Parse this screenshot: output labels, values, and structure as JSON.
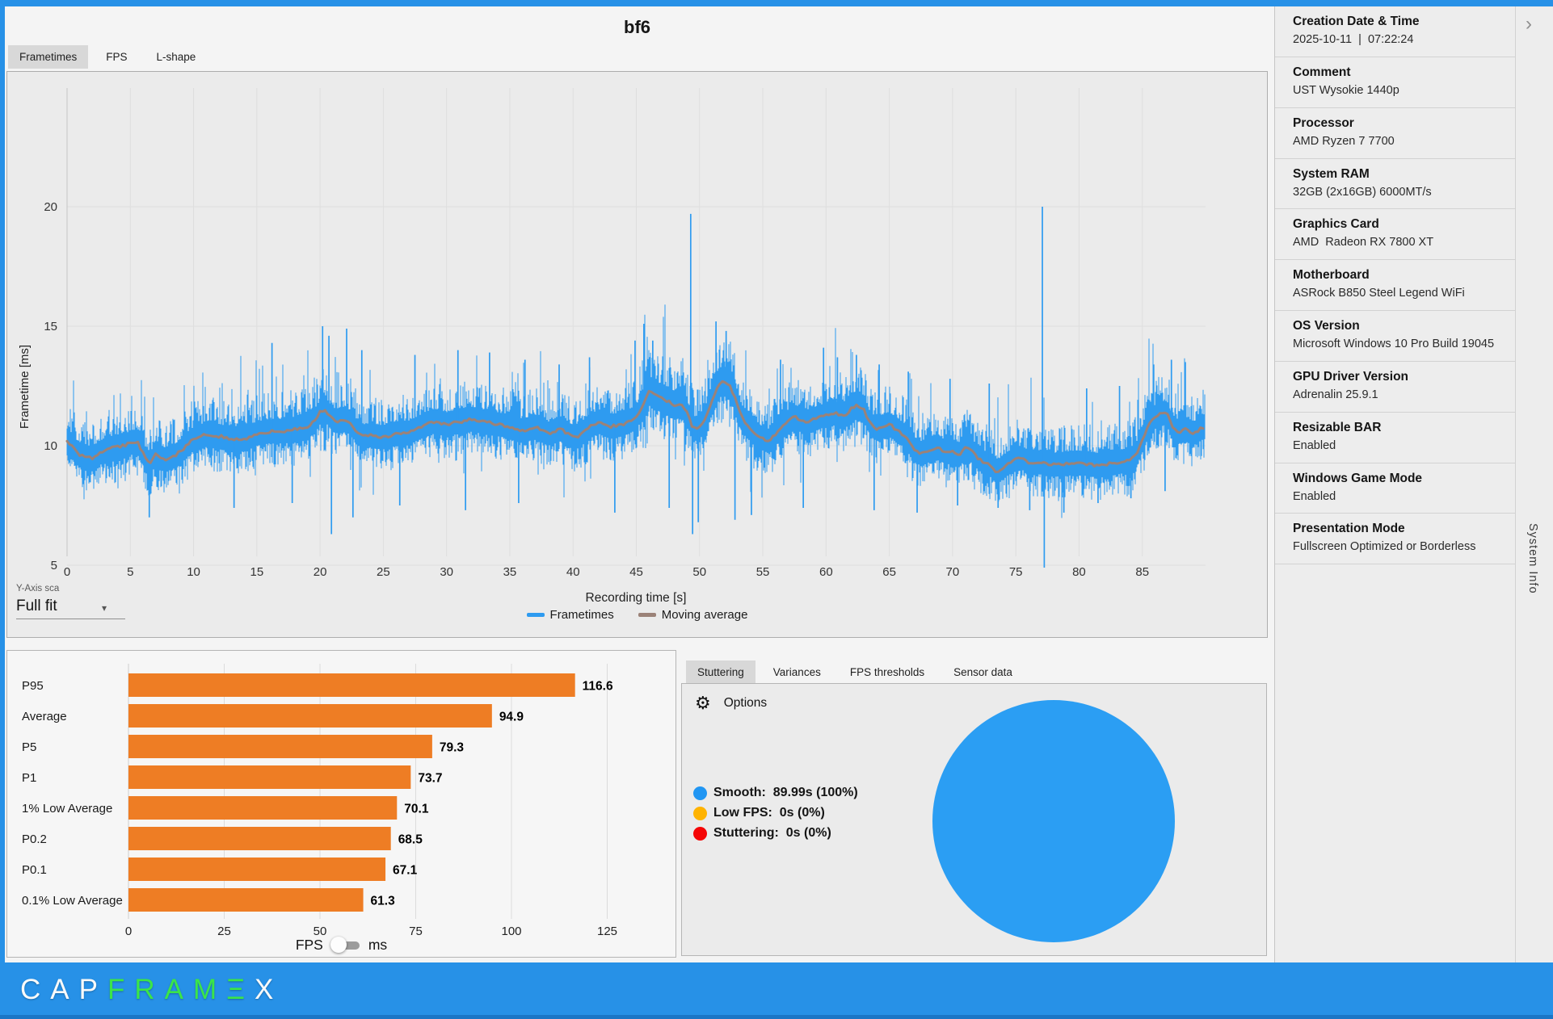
{
  "colors": {
    "accent_blue": "#2791E7",
    "frametime_blue": "#2E9BF0",
    "moving_avg_brown": "#9B8278",
    "bar_orange": "#EE7D24",
    "pie_blue": "#2B9EF3"
  },
  "header": {
    "title": "bf6",
    "tabs": [
      "Frametimes",
      "FPS",
      "L-shape"
    ],
    "selected_tab": "Frametimes"
  },
  "frametime_panel": {
    "y_axis_scale_label": "Y-Axis sca",
    "y_axis_scale_value": "Full fit",
    "legend": [
      {
        "label": "Frametimes",
        "color": "#2E9BF0"
      },
      {
        "label": "Moving average",
        "color": "#9B8278"
      }
    ]
  },
  "bottom_left": {
    "toggle": {
      "left_label": "FPS",
      "right_label": "ms",
      "state": "FPS"
    }
  },
  "stutter_panel": {
    "tabs": [
      "Stuttering",
      "Variances",
      "FPS thresholds",
      "Sensor data"
    ],
    "selected_tab": "Stuttering",
    "options_label": "Options",
    "legend": [
      {
        "label": "Smooth:",
        "value": "89.99s (100%)",
        "color": "#2196F3"
      },
      {
        "label": "Low FPS:",
        "value": "0s (0%)",
        "color": "#FFB300"
      },
      {
        "label": "Stuttering:",
        "value": "0s (0%)",
        "color": "#F50505"
      }
    ]
  },
  "sidebar": {
    "panel_label": "System Info",
    "chevron": "›",
    "items": [
      {
        "title": "Creation Date & Time",
        "value": "2025-10-11  |  07:22:24"
      },
      {
        "title": "Comment",
        "value": "UST Wysokie 1440p"
      },
      {
        "title": "Processor",
        "value": "AMD Ryzen 7 7700"
      },
      {
        "title": "System RAM",
        "value": "32GB (2x16GB) 6000MT/s"
      },
      {
        "title": "Graphics Card",
        "value": "AMD  Radeon RX 7800 XT"
      },
      {
        "title": "Motherboard",
        "value": "ASRock B850 Steel Legend WiFi"
      },
      {
        "title": "OS Version",
        "value": "Microsoft Windows 10 Pro Build 19045"
      },
      {
        "title": "GPU Driver Version",
        "value": "Adrenalin 25.9.1"
      },
      {
        "title": "Resizable BAR",
        "value": "Enabled"
      },
      {
        "title": "Windows Game Mode",
        "value": "Enabled"
      },
      {
        "title": "Presentation Mode",
        "value": "Fullscreen Optimized or Borderless"
      }
    ]
  },
  "footer": {
    "letters": [
      {
        "ch": "C",
        "color": "#FAFAFA"
      },
      {
        "ch": "A",
        "color": "#FAFAFA"
      },
      {
        "ch": "P",
        "color": "#FAFAFA"
      },
      {
        "ch": "F",
        "color": "#3BE549"
      },
      {
        "ch": "R",
        "color": "#3BE549"
      },
      {
        "ch": "A",
        "color": "#3BE549"
      },
      {
        "ch": "M",
        "color": "#3BE549"
      },
      {
        "ch": "Ξ",
        "color": "#3BE549"
      },
      {
        "ch": "X",
        "color": "#FAFAFA"
      }
    ]
  },
  "chart_data": [
    {
      "type": "line",
      "title": "bf6",
      "xlabel": "Recording time [s]",
      "ylabel": "Frametime [ms]",
      "xlim": [
        0,
        90
      ],
      "end_time_s": 89.99,
      "xticks": [
        0,
        5,
        10,
        15,
        20,
        25,
        30,
        35,
        40,
        45,
        50,
        55,
        60,
        65,
        70,
        75,
        80,
        85
      ],
      "yticks": [
        5,
        10,
        15,
        20
      ],
      "grid": true,
      "legend_position": "bottom-center",
      "series": [
        {
          "name": "Frametimes",
          "color": "#2E9BF0",
          "style": "noisy-band",
          "band_halfwidth_ms": 1.3,
          "noise_seed": 1337,
          "spikes_up": [
            [
              16.2,
              14.3
            ],
            [
              20.2,
              15.0
            ],
            [
              20.7,
              14.6
            ],
            [
              22.1,
              14.9
            ],
            [
              23.3,
              14.0
            ],
            [
              27.5,
              13.8
            ],
            [
              30.9,
              14.0
            ],
            [
              33.4,
              13.9
            ],
            [
              36.2,
              13.6
            ],
            [
              38.9,
              13.4
            ],
            [
              41.3,
              13.7
            ],
            [
              44.9,
              14.4
            ],
            [
              45.6,
              15.1
            ],
            [
              46.3,
              14.4
            ],
            [
              49.3,
              19.7
            ],
            [
              51.3,
              15.2
            ],
            [
              52.1,
              14.8
            ],
            [
              56.4,
              13.6
            ],
            [
              59.8,
              14.1
            ],
            [
              60.9,
              13.7
            ],
            [
              62.4,
              13.8
            ],
            [
              64.2,
              13.4
            ],
            [
              66.5,
              13.1
            ],
            [
              69.8,
              12.8
            ],
            [
              72.9,
              12.6
            ],
            [
              77.1,
              20.0
            ],
            [
              80.6,
              12.4
            ],
            [
              83.2,
              12.5
            ],
            [
              85.9,
              13.4
            ],
            [
              87.3,
              13.6
            ],
            [
              88.4,
              13.5
            ]
          ],
          "spikes_down": [
            [
              6.5,
              7.0
            ],
            [
              13.2,
              7.4
            ],
            [
              17.8,
              7.6
            ],
            [
              20.9,
              6.3
            ],
            [
              22.6,
              7.0
            ],
            [
              26.3,
              7.5
            ],
            [
              31.5,
              7.3
            ],
            [
              35.7,
              7.6
            ],
            [
              43.3,
              7.2
            ],
            [
              47.6,
              7.4
            ],
            [
              49.45,
              6.3
            ],
            [
              49.9,
              6.8
            ],
            [
              52.8,
              6.9
            ],
            [
              54.1,
              7.1
            ],
            [
              58.2,
              7.4
            ],
            [
              63.8,
              7.3
            ],
            [
              67.2,
              7.2
            ],
            [
              70.4,
              7.5
            ],
            [
              73.6,
              7.4
            ],
            [
              76.1,
              7.3
            ],
            [
              77.25,
              4.9
            ],
            [
              78.8,
              7.2
            ],
            [
              81.5,
              7.6
            ],
            [
              84.1,
              7.8
            ],
            [
              86.8,
              8.1
            ]
          ]
        },
        {
          "name": "Moving average",
          "color": "#9B8278",
          "points": [
            [
              0,
              10.15
            ],
            [
              0.5,
              9.9
            ],
            [
              1,
              9.6
            ],
            [
              1.5,
              9.5
            ],
            [
              2,
              9.5
            ],
            [
              2.5,
              9.65
            ],
            [
              3,
              9.85
            ],
            [
              3.5,
              9.9
            ],
            [
              4,
              9.95
            ],
            [
              4.5,
              10.0
            ],
            [
              5,
              10.1
            ],
            [
              5.5,
              10.2
            ],
            [
              6,
              9.7
            ],
            [
              6.3,
              9.3
            ],
            [
              6.7,
              9.35
            ],
            [
              7,
              9.7
            ],
            [
              7.4,
              9.5
            ],
            [
              7.8,
              9.4
            ],
            [
              8.2,
              9.5
            ],
            [
              8.6,
              9.6
            ],
            [
              9,
              9.8
            ],
            [
              9.5,
              10.0
            ],
            [
              10,
              10.3
            ],
            [
              10.5,
              10.4
            ],
            [
              11,
              10.45
            ],
            [
              12,
              10.4
            ],
            [
              13,
              10.3
            ],
            [
              14,
              10.25
            ],
            [
              15,
              10.5
            ],
            [
              16,
              10.6
            ],
            [
              17,
              10.6
            ],
            [
              18,
              10.7
            ],
            [
              19,
              10.8
            ],
            [
              19.5,
              11.0
            ],
            [
              20,
              11.4
            ],
            [
              20.4,
              11.5
            ],
            [
              21,
              11.1
            ],
            [
              21.5,
              11.0
            ],
            [
              22,
              11.1
            ],
            [
              22.5,
              10.9
            ],
            [
              23,
              10.5
            ],
            [
              23.5,
              10.4
            ],
            [
              24,
              10.45
            ],
            [
              25,
              10.35
            ],
            [
              26,
              10.5
            ],
            [
              27,
              10.55
            ],
            [
              28,
              10.8
            ],
            [
              29,
              11.0
            ],
            [
              30,
              10.9
            ],
            [
              31,
              11.0
            ],
            [
              32,
              11.1
            ],
            [
              33,
              11.0
            ],
            [
              34,
              10.9
            ],
            [
              35,
              10.8
            ],
            [
              36,
              10.6
            ],
            [
              37,
              10.8
            ],
            [
              38,
              10.5
            ],
            [
              39,
              10.7
            ],
            [
              40,
              10.35
            ],
            [
              40.5,
              10.4
            ],
            [
              41,
              10.7
            ],
            [
              42,
              11.0
            ],
            [
              43,
              10.8
            ],
            [
              44,
              10.9
            ],
            [
              45,
              11.2
            ],
            [
              45.5,
              11.6
            ],
            [
              46,
              12.3
            ],
            [
              46.5,
              12.1
            ],
            [
              47,
              12.0
            ],
            [
              47.5,
              11.85
            ],
            [
              48,
              11.7
            ],
            [
              48.5,
              11.8
            ],
            [
              49,
              11.4
            ],
            [
              49.5,
              10.7
            ],
            [
              50,
              10.8
            ],
            [
              50.5,
              11.2
            ],
            [
              51,
              11.9
            ],
            [
              51.5,
              12.6
            ],
            [
              52,
              12.7
            ],
            [
              52.5,
              12.4
            ],
            [
              53,
              11.7
            ],
            [
              53.5,
              11.0
            ],
            [
              54,
              10.7
            ],
            [
              54.5,
              10.4
            ],
            [
              55,
              10.3
            ],
            [
              55.5,
              10.2
            ],
            [
              56,
              10.5
            ],
            [
              56.5,
              10.8
            ],
            [
              57,
              11.0
            ],
            [
              57.5,
              11.2
            ],
            [
              58,
              11.1
            ],
            [
              58.5,
              11.0
            ],
            [
              59,
              11.1
            ],
            [
              59.5,
              11.2
            ],
            [
              60,
              11.3
            ],
            [
              60.5,
              11.4
            ],
            [
              61,
              11.3
            ],
            [
              61.5,
              11.2
            ],
            [
              62,
              11.6
            ],
            [
              62.5,
              11.7
            ],
            [
              63,
              11.5
            ],
            [
              63.5,
              10.9
            ],
            [
              64,
              10.7
            ],
            [
              64.5,
              10.8
            ],
            [
              65,
              10.9
            ],
            [
              65.5,
              10.7
            ],
            [
              66,
              10.5
            ],
            [
              66.5,
              10.3
            ],
            [
              67,
              9.8
            ],
            [
              67.5,
              9.7
            ],
            [
              68,
              9.8
            ],
            [
              68.5,
              9.9
            ],
            [
              69,
              9.9
            ],
            [
              69.5,
              9.7
            ],
            [
              70,
              9.8
            ],
            [
              70.5,
              9.6
            ],
            [
              71,
              9.9
            ],
            [
              71.5,
              9.8
            ],
            [
              72,
              9.5
            ],
            [
              72.5,
              9.3
            ],
            [
              73,
              9.2
            ],
            [
              73.5,
              8.9
            ],
            [
              74,
              9.1
            ],
            [
              74.5,
              9.3
            ],
            [
              75,
              9.45
            ],
            [
              75.5,
              9.5
            ],
            [
              76,
              9.3
            ],
            [
              77,
              9.3
            ],
            [
              78,
              9.2
            ],
            [
              79,
              9.25
            ],
            [
              80,
              9.3
            ],
            [
              81,
              9.2
            ],
            [
              82,
              9.2
            ],
            [
              83,
              9.3
            ],
            [
              84,
              9.4
            ],
            [
              84.5,
              9.6
            ],
            [
              85,
              10.2
            ],
            [
              85.5,
              10.9
            ],
            [
              86,
              11.2
            ],
            [
              86.5,
              11.4
            ],
            [
              87,
              11.3
            ],
            [
              87.5,
              10.65
            ],
            [
              88,
              10.6
            ],
            [
              88.5,
              10.7
            ],
            [
              89,
              10.5
            ],
            [
              89.9,
              10.8
            ]
          ]
        }
      ]
    },
    {
      "type": "bar",
      "orientation": "horizontal",
      "unit": "FPS",
      "categories": [
        "P95",
        "Average",
        "P5",
        "P1",
        "1% Low Average",
        "P0.2",
        "P0.1",
        "0.1% Low Average"
      ],
      "values": [
        116.6,
        94.9,
        79.3,
        73.7,
        70.1,
        68.5,
        67.1,
        61.3
      ],
      "bar_color": "#EE7D24",
      "xticks": [
        0,
        25,
        50,
        75,
        100,
        125
      ],
      "xlim": [
        0,
        140
      ],
      "grid": true
    },
    {
      "type": "pie",
      "slices": [
        {
          "label": "Smooth",
          "seconds": 89.99,
          "percent": 100,
          "color": "#2B9EF3"
        },
        {
          "label": "Low FPS",
          "seconds": 0,
          "percent": 0,
          "color": "#FFB300"
        },
        {
          "label": "Stuttering",
          "seconds": 0,
          "percent": 0,
          "color": "#F50505"
        }
      ]
    }
  ]
}
